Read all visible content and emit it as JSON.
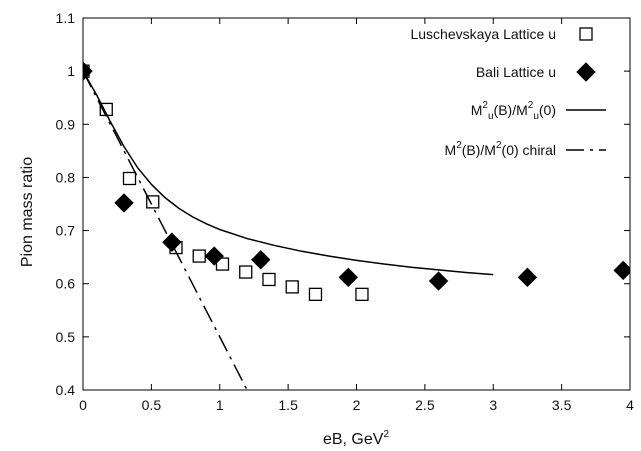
{
  "chart_data": {
    "type": "scatter",
    "xlabel": "eB, GeV",
    "xlabel_sup": "2",
    "ylabel": "Pion mass ratio",
    "xlim": [
      0,
      4
    ],
    "ylim": [
      0.4,
      1.1
    ],
    "xticks": [
      "0",
      "0.5",
      "1",
      "1.5",
      "2",
      "2.5",
      "3",
      "3.5",
      "4"
    ],
    "yticks": [
      "0.4",
      "0.5",
      "0.6",
      "0.7",
      "0.8",
      "0.9",
      "1",
      "1.1"
    ],
    "grid": false,
    "legend_position": "top-right",
    "series": [
      {
        "name": "Luschevskaya Lattice u",
        "marker": "open-square",
        "color": "#000000",
        "x": [
          0.0,
          0.17,
          0.34,
          0.51,
          0.68,
          0.85,
          1.02,
          1.19,
          1.36,
          1.53,
          1.7,
          2.04
        ],
        "y": [
          1.0,
          0.928,
          0.798,
          0.754,
          0.668,
          0.652,
          0.637,
          0.622,
          0.608,
          0.594,
          0.58,
          0.58
        ]
      },
      {
        "name": "Bali Lattice u",
        "marker": "filled-diamond",
        "color": "#000000",
        "x": [
          0.0,
          0.3,
          0.65,
          0.96,
          1.3,
          1.94,
          2.6,
          3.25,
          3.95
        ],
        "y": [
          1.0,
          0.752,
          0.678,
          0.652,
          0.645,
          0.612,
          0.605,
          0.612,
          0.625
        ]
      },
      {
        "name_parts": [
          "M",
          "2",
          "u",
          "(B)/M",
          "2",
          "u",
          "(0)"
        ],
        "style": "solid",
        "color": "#000000",
        "x": [
          0.0,
          0.1,
          0.2,
          0.3,
          0.4,
          0.5,
          0.6,
          0.7,
          0.8,
          0.9,
          1.0,
          1.2,
          1.4,
          1.6,
          1.8,
          2.0,
          2.2,
          2.4,
          2.6,
          2.8,
          3.0
        ],
        "y": [
          1.0,
          0.955,
          0.905,
          0.858,
          0.818,
          0.787,
          0.762,
          0.742,
          0.726,
          0.713,
          0.702,
          0.685,
          0.672,
          0.661,
          0.652,
          0.644,
          0.637,
          0.631,
          0.626,
          0.621,
          0.617
        ]
      },
      {
        "name_parts": [
          "M",
          "2",
          "(B)/M",
          "2",
          "(0) chiral"
        ],
        "style": "dash-dot",
        "color": "#000000",
        "x": [
          0.0,
          0.1,
          0.2,
          0.3,
          0.4,
          0.5,
          0.6,
          0.7,
          0.8,
          0.9,
          1.0,
          1.1,
          1.2
        ],
        "y": [
          1.0,
          0.95,
          0.9,
          0.85,
          0.8,
          0.75,
          0.7,
          0.65,
          0.6,
          0.55,
          0.5,
          0.45,
          0.4
        ]
      }
    ]
  }
}
